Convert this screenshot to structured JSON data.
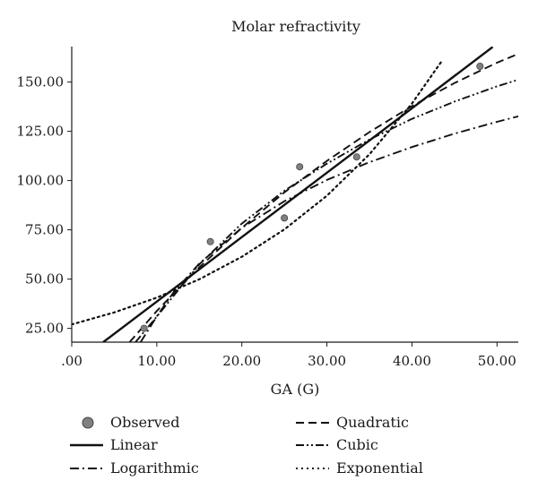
{
  "chart_data": {
    "type": "line",
    "title": "Molar refractivity",
    "xlabel": "GA (G)",
    "ylabel": "",
    "xlim": [
      0,
      52.5
    ],
    "ylim": [
      18,
      168
    ],
    "x_ticks": [
      0,
      10,
      20,
      30,
      40,
      50
    ],
    "x_tick_labels": [
      ".00",
      "10.00",
      "20.00",
      "30.00",
      "40.00",
      "50.00"
    ],
    "y_ticks": [
      25,
      50,
      75,
      100,
      125,
      150
    ],
    "y_tick_labels": [
      "25.00",
      "50.00",
      "75.00",
      "100.00",
      "125.00",
      "150.00"
    ],
    "grid": false,
    "legend_position": "bottom",
    "observed": {
      "name": "Observed",
      "points": [
        {
          "x": 8.5,
          "y": 25
        },
        {
          "x": 16.3,
          "y": 69
        },
        {
          "x": 25.0,
          "y": 81
        },
        {
          "x": 26.8,
          "y": 107
        },
        {
          "x": 33.5,
          "y": 112
        },
        {
          "x": 48.0,
          "y": 158
        }
      ],
      "color": "#808080"
    },
    "series": [
      {
        "name": "Linear",
        "style": "solid",
        "x": [
          3.7,
          10,
          20,
          30,
          40,
          49.5
        ],
        "y": [
          18,
          38.6,
          71.3,
          104,
          136.7,
          167.8
        ]
      },
      {
        "name": "Quadratic",
        "style": "dash",
        "x": [
          6.8,
          10,
          15,
          20,
          25,
          30,
          35,
          40,
          45,
          50,
          52.5
        ],
        "y": [
          18,
          33.8,
          56,
          76,
          94,
          110,
          124.6,
          137.8,
          149.5,
          159.8,
          164.3
        ]
      },
      {
        "name": "Logarithmic",
        "style": "dashdot",
        "x": [
          8.1,
          10,
          12,
          15,
          20,
          25,
          30,
          35,
          40,
          45,
          50,
          52.5
        ],
        "y": [
          18,
          31.1,
          43.4,
          57.9,
          76,
          89.5,
          100.3,
          109.3,
          117,
          123.8,
          129.8,
          132.6
        ]
      },
      {
        "name": "Cubic",
        "style": "dashdotdot",
        "x": [
          7.5,
          10,
          15,
          20,
          25,
          30,
          35,
          40,
          45,
          50,
          52.5
        ],
        "y": [
          18,
          31,
          57.5,
          78.2,
          94.8,
          108.6,
          120.8,
          131.3,
          140.1,
          147.8,
          151.2
        ]
      },
      {
        "name": "Exponential",
        "style": "dot",
        "x": [
          0,
          5,
          10,
          15,
          20,
          25,
          30,
          35,
          40,
          43.5
        ],
        "y": [
          27,
          33.1,
          40.6,
          49.9,
          61.3,
          75.2,
          92.3,
          113.3,
          139.1,
          160.6
        ]
      }
    ],
    "legend": [
      {
        "label": "Observed",
        "marker": "circle"
      },
      {
        "label": "Quadratic",
        "marker": "dash"
      },
      {
        "label": "Linear",
        "marker": "solid"
      },
      {
        "label": "Cubic",
        "marker": "dashdotdot"
      },
      {
        "label": "Logarithmic",
        "marker": "dashdot"
      },
      {
        "label": "Exponential",
        "marker": "dot"
      }
    ]
  }
}
